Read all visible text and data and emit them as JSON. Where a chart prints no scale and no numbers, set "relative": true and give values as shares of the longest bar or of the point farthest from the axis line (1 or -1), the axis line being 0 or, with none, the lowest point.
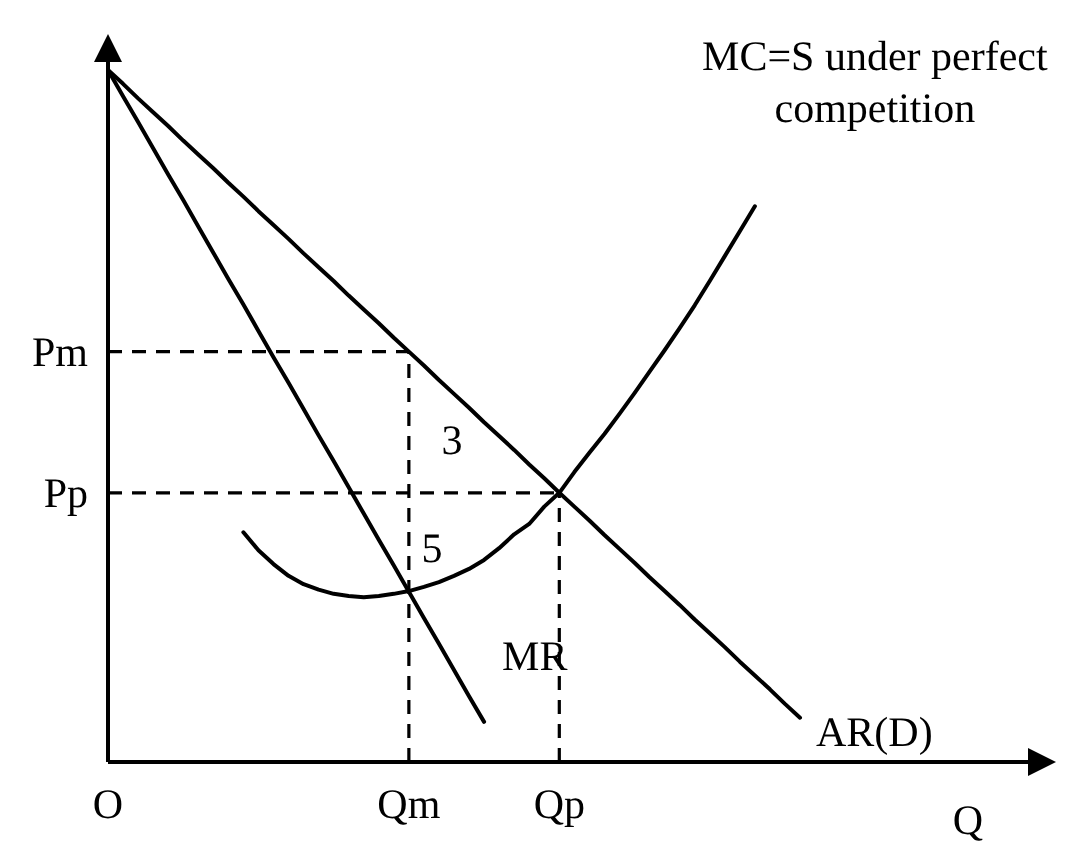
{
  "chart_data": {
    "type": "line",
    "xlabel": "Q",
    "relative": true,
    "categories": [
      "O",
      null,
      null,
      null,
      null,
      null,
      null,
      null,
      null,
      null,
      null,
      null,
      null,
      null,
      null,
      null,
      null,
      null,
      null,
      null,
      "Qm",
      null,
      null,
      null,
      null,
      null,
      null,
      null,
      null,
      null,
      "Qp",
      null,
      null,
      null,
      null,
      null,
      null,
      null,
      null,
      null,
      null,
      null,
      null,
      null,
      null,
      null,
      null
    ],
    "series": [
      {
        "name": "AR(D)",
        "color": "#000000",
        "values": [
          1,
          0.98,
          0.959,
          0.939,
          0.919,
          0.898,
          0.878,
          0.858,
          0.837,
          0.817,
          0.796,
          0.776,
          0.756,
          0.735,
          0.715,
          0.695,
          0.674,
          0.654,
          0.634,
          0.613,
          0.593,
          0.573,
          0.552,
          0.532,
          0.512,
          0.491,
          0.471,
          0.451,
          0.43,
          0.41,
          0.389,
          0.369,
          0.349,
          0.328,
          0.308,
          0.288,
          0.267,
          0.247,
          0.227,
          0.206,
          0.186,
          0.166,
          0.145,
          0.125,
          0.105,
          0.084,
          0.064
        ]
      },
      {
        "name": "MR",
        "color": "#000000",
        "values": [
          1,
          0.962,
          0.925,
          0.887,
          0.849,
          0.812,
          0.774,
          0.736,
          0.698,
          0.661,
          0.623,
          0.585,
          0.548,
          0.51,
          0.472,
          0.435,
          0.397,
          0.359,
          0.321,
          0.284,
          0.246,
          0.208,
          0.171,
          0.133,
          0.095,
          0.058,
          null,
          null,
          null,
          null,
          null,
          null,
          null,
          null,
          null,
          null,
          null,
          null,
          null,
          null,
          null,
          null,
          null,
          null,
          null,
          null,
          null
        ]
      },
      {
        "name": "MC=S under perfect competition",
        "color": "#000000",
        "values": [
          null,
          null,
          null,
          null,
          null,
          null,
          null,
          null,
          null,
          0.332,
          0.306,
          0.286,
          0.269,
          0.257,
          0.249,
          0.243,
          0.24,
          0.238,
          0.24,
          0.243,
          0.247,
          0.253,
          0.26,
          0.269,
          0.279,
          0.292,
          0.309,
          0.329,
          0.344,
          0.369,
          0.389,
          0.419,
          0.447,
          0.474,
          0.503,
          0.533,
          0.564,
          0.595,
          0.627,
          0.66,
          0.695,
          0.731,
          0.767,
          0.803,
          null,
          null,
          null
        ]
      }
    ],
    "ref_lines": [
      {
        "axis": "x",
        "value": "Qm",
        "line_style": "dashed"
      },
      {
        "axis": "x",
        "value": "Qp",
        "line_style": "dashed"
      },
      {
        "axis": "y",
        "value": 0.593,
        "label": "Pm",
        "line_style": "dashed"
      },
      {
        "axis": "y",
        "value": 0.389,
        "label": "Pp",
        "line_style": "dashed"
      }
    ],
    "annotations": [
      "3",
      "5"
    ],
    "marker": "none",
    "line_style": "solid"
  }
}
